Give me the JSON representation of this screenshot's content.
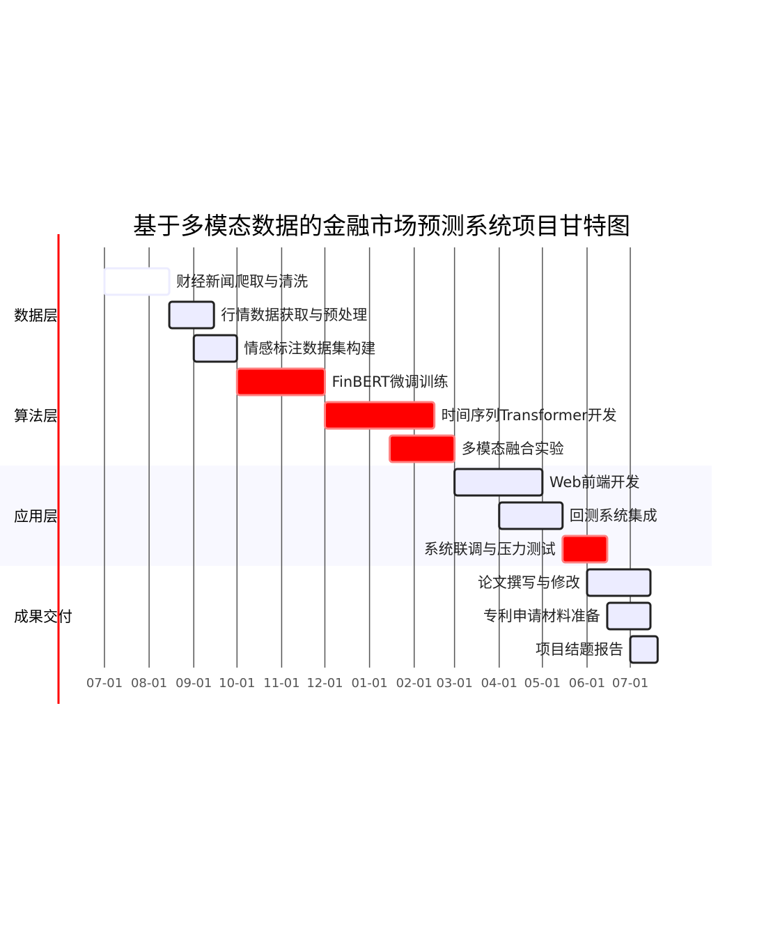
{
  "chart_data": {
    "type": "gantt",
    "title": "基于多模态数据的金融市场预测系统项目甘特图",
    "axis_ticks": [
      "07-01",
      "08-01",
      "09-01",
      "10-01",
      "11-01",
      "12-01",
      "01-01",
      "02-01",
      "03-01",
      "04-01",
      "05-01",
      "06-01",
      "07-01"
    ],
    "axis_range": [
      "2024-07-01",
      "2025-07-01"
    ],
    "today_marker_color": "#ff0000",
    "sections": [
      {
        "name": "数据层",
        "shaded": false,
        "tasks": [
          0,
          1,
          2
        ]
      },
      {
        "name": "算法层",
        "shaded": false,
        "tasks": [
          3,
          4,
          5
        ]
      },
      {
        "name": "应用层",
        "shaded": true,
        "tasks": [
          6,
          7,
          8
        ]
      },
      {
        "name": "成果交付",
        "shaded": false,
        "tasks": [
          9,
          10,
          11
        ]
      }
    ],
    "tasks": [
      {
        "name": "财经新闻爬取与清洗",
        "start": "2024-07-01",
        "end": "2024-08-15",
        "status": "done",
        "label_side": "right"
      },
      {
        "name": "行情数据获取与预处理",
        "start": "2024-08-15",
        "end": "2024-09-15",
        "status": "normal",
        "label_side": "right"
      },
      {
        "name": "情感标注数据集构建",
        "start": "2024-09-01",
        "end": "2024-10-01",
        "status": "normal",
        "label_side": "right"
      },
      {
        "name": "FinBERT微调训练",
        "start": "2024-10-01",
        "end": "2024-12-01",
        "status": "critical",
        "label_side": "right"
      },
      {
        "name": "时间序列Transformer开发",
        "start": "2024-12-01",
        "end": "2025-02-15",
        "status": "critical",
        "label_side": "right"
      },
      {
        "name": "多模态融合实验",
        "start": "2025-01-15",
        "end": "2025-03-01",
        "status": "critical",
        "label_side": "right"
      },
      {
        "name": "Web前端开发",
        "start": "2025-03-01",
        "end": "2025-05-01",
        "status": "normal",
        "label_side": "right"
      },
      {
        "name": "回测系统集成",
        "start": "2025-04-01",
        "end": "2025-05-15",
        "status": "normal",
        "label_side": "right"
      },
      {
        "name": "系统联调与压力测试",
        "start": "2025-05-15",
        "end": "2025-06-15",
        "status": "critical",
        "label_side": "left"
      },
      {
        "name": "论文撰写与修改",
        "start": "2025-06-01",
        "end": "2025-07-15",
        "status": "normal",
        "label_side": "left"
      },
      {
        "name": "专利申请材料准备",
        "start": "2025-06-15",
        "end": "2025-07-15",
        "status": "normal",
        "label_side": "left"
      },
      {
        "name": "项目结题报告",
        "start": "2025-07-01",
        "end": "2025-07-20",
        "status": "normal",
        "label_side": "left"
      }
    ],
    "colors": {
      "normal_fill": "#ececff",
      "normal_stroke": "#222222",
      "done_fill": "#ffffff",
      "done_stroke": "#ececff",
      "critical_fill": "#ff0000",
      "critical_stroke": "#ff8080",
      "shaded_section": "#f8f8ff",
      "grid": "#555555"
    }
  }
}
